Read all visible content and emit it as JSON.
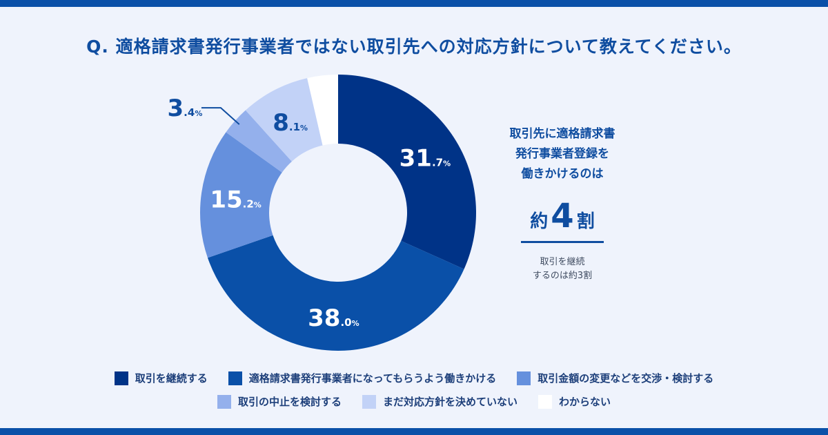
{
  "title": "Q. 適格請求書発行事業者ではない取引先への対応方針について教えてください。",
  "chart_data": {
    "type": "pie",
    "donut": true,
    "title": "Q. 適格請求書発行事業者ではない取引先への対応方針について教えてください。",
    "unit": "%",
    "slices": [
      {
        "label": "取引を継続する",
        "value": 31.7,
        "int": "31",
        "dec": ".7",
        "color": "#003387",
        "text_color": "#ffffff"
      },
      {
        "label": "適格請求書発行事業者になってもらうよう働きかける",
        "value": 38.0,
        "int": "38",
        "dec": ".0",
        "color": "#0a50a8",
        "text_color": "#ffffff"
      },
      {
        "label": "取引金額の変更などを交渉・検討する",
        "value": 15.2,
        "int": "15",
        "dec": ".2",
        "color": "#6590dd",
        "text_color": "#ffffff"
      },
      {
        "label": "取引の中止を検討する",
        "value": 3.4,
        "int": "3",
        "dec": ".4",
        "color": "#94b0ec",
        "text_color": "#0f4da0"
      },
      {
        "label": "まだ対応方針を決めていない",
        "value": 8.1,
        "int": "8",
        "dec": ".1",
        "color": "#c2d2f7",
        "text_color": "#0f4da0"
      },
      {
        "label": "わからない",
        "value": 3.6,
        "int": "",
        "dec": "",
        "color": "#ffffff",
        "text_color": "#0f4da0"
      }
    ],
    "legend_position": "bottom"
  },
  "side": {
    "lines": [
      "取引先に適格請求書",
      "発行事業者登録を",
      "働きかけるのは"
    ],
    "big_prefix": "約",
    "big_number": "4",
    "big_suffix": "割",
    "note_lines": [
      "取引を継続",
      "するのは約3割"
    ]
  },
  "legend": {
    "row1": [
      "取引を継続する",
      "適格請求書発行事業者になってもらうよう働きかける",
      "取引金額の変更などを交渉・検討する"
    ],
    "row2": [
      "取引の中止を検討する",
      "まだ対応方針を決めていない",
      "わからない"
    ]
  }
}
